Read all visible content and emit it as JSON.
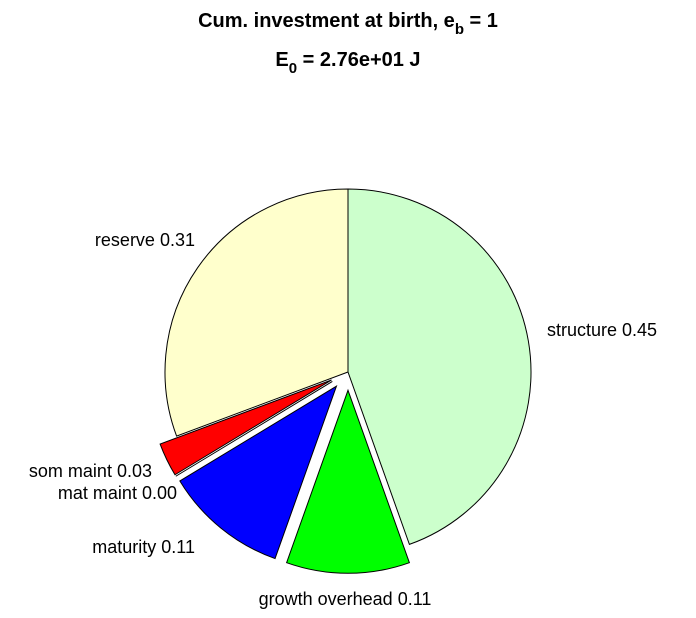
{
  "chart_data": {
    "type": "pie",
    "title": "Cum. investment at birth, e",
    "title_sub": "b",
    "title_end": " = 1",
    "subtitle": "E",
    "subtitle_sub": "0",
    "subtitle_end": " = 2.76e+01 J",
    "categories": [
      "structure",
      "growth overhead",
      "maturity",
      "mat maint",
      "som maint",
      "reserve"
    ],
    "values": [
      0.45,
      0.11,
      0.11,
      0,
      0.03,
      0.31
    ],
    "value_labels": [
      "0.45",
      "0.11",
      "0.11",
      "0.00",
      "0.03",
      "0.31"
    ],
    "colors": [
      "#ccffcc",
      "#00ff00",
      "#0000ff",
      "#8000ff",
      "#ff0000",
      "#ffffcc"
    ],
    "explode": [
      0,
      0.1,
      0.1,
      0.1,
      0.1,
      0
    ]
  }
}
